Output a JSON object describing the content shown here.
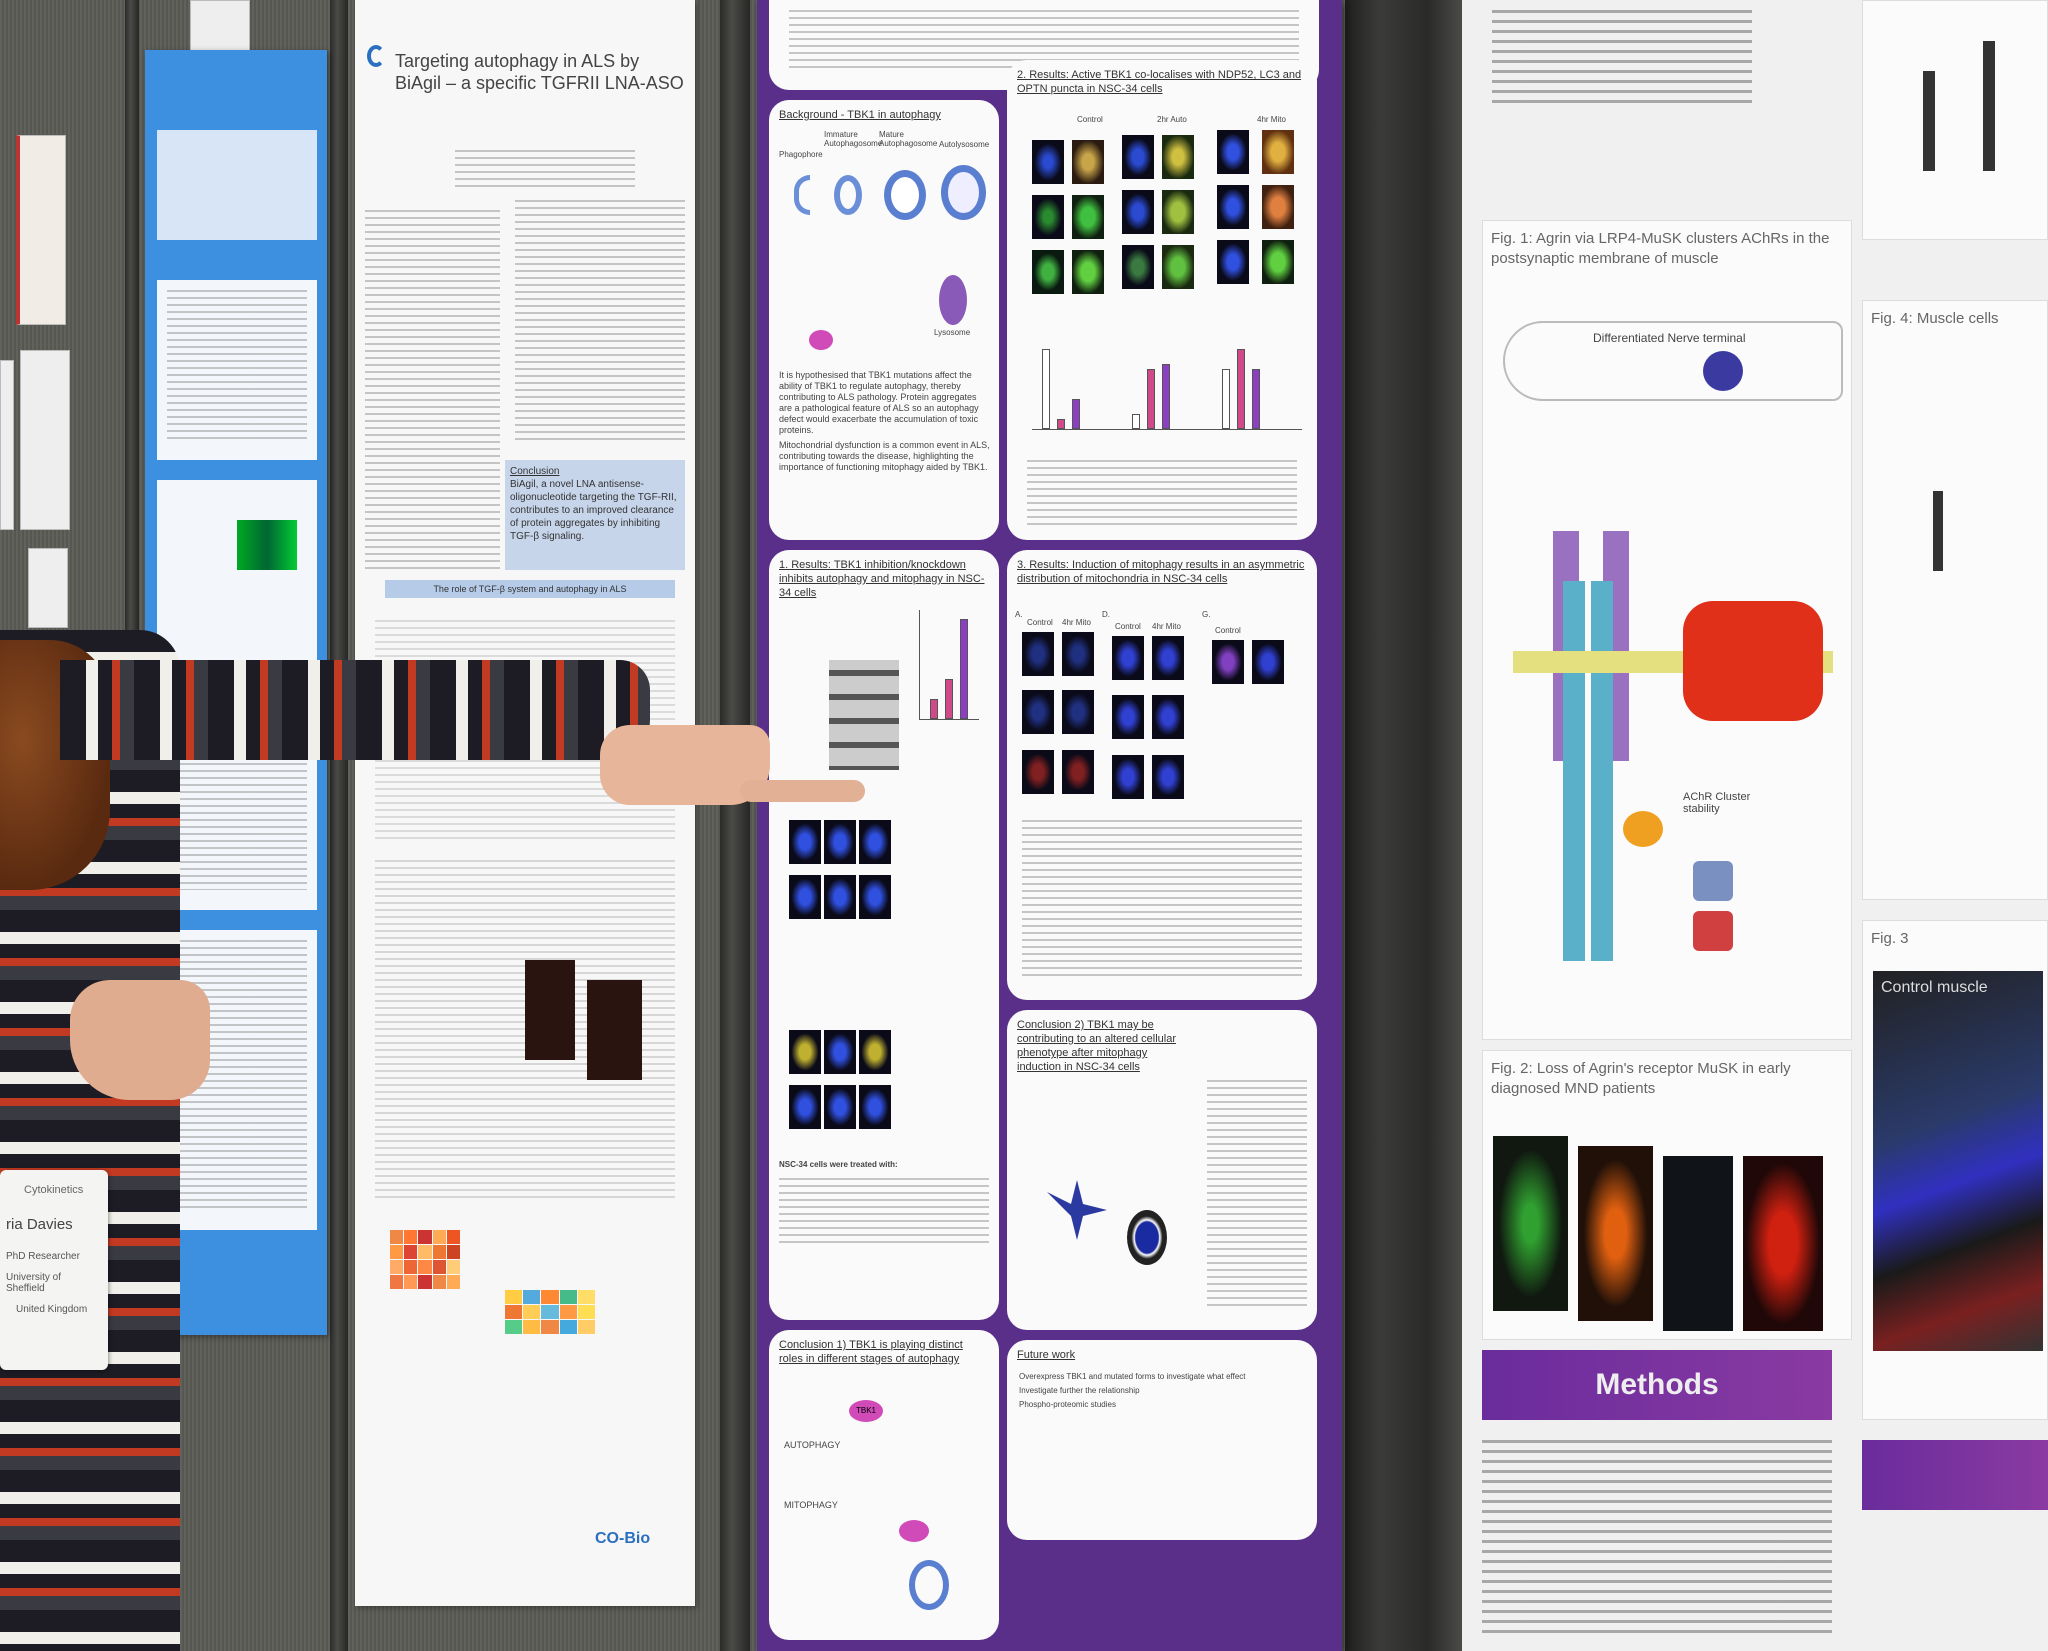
{
  "scene": "poster session",
  "badge": {
    "org": "Cytokinetics",
    "name": "ria Davies",
    "role": "PhD Researcher",
    "affiliation": "University of Sheffield",
    "country": "United Kingdom"
  },
  "poster_tgfr": {
    "title": "Targeting autophagy in ALS by BiAgil – a specific TGFRII LNA-ASO",
    "conclusion_heading": "Conclusion",
    "conclusion_text": "BiAgil, a novel LNA antisense-oligonucleotide targeting the TGF-RII, contributes to an improved clearance of protein aggregates by inhibiting TGF-β signaling.",
    "section_role": "The role of TGF-β system and autophagy in ALS",
    "logo": "CO-Bio"
  },
  "poster_tbk1": {
    "background_heading": "Background - TBK1 in autophagy",
    "stages": [
      "Phagophore",
      "Immature Autophagosome",
      "Mature Autophagosome",
      "Autolysosome"
    ],
    "lysosome": "Lysosome",
    "bullets": [
      "It is hypothesised that TBK1 mutations affect the ability of TBK1 to regulate autophagy, thereby contributing to ALS pathology. Protein aggregates are a pathological feature of ALS so an autophagy defect would exacerbate the accumulation of toxic proteins.",
      "Mitochondrial dysfunction is a common event in ALS, contributing towards the disease, highlighting the importance of functioning mitophagy aided by TBK1."
    ],
    "results1_heading": "1. Results: TBK1 inhibition/knockdown inhibits autophagy and mitophagy in NSC-34 cells",
    "results2_heading": "2. Results: Active TBK1 co-localises with NDP52, LC3 and OPTN puncta in NSC-34 cells",
    "results2_cols": [
      "Control",
      "2hr Auto",
      "4hr Mito"
    ],
    "results3_heading": "3. Results: Induction of mitophagy results in an asymmetric distribution of mitochondria in NSC-34 cells",
    "results3_cols": [
      "A.",
      "Control",
      "4hr Mito",
      "D.",
      "Control",
      "4hr Mito",
      "G.",
      "Control"
    ],
    "treated_heading": "NSC-34 cells were treated with:",
    "conclusion1_heading": "Conclusion 1) TBK1 is playing distinct roles in different stages of autophagy",
    "conclusion1_labels": [
      "AUTOPHAGY",
      "MITOPHAGY",
      "TBK1"
    ],
    "conclusion2_heading": "Conclusion 2) TBK1 may be contributing to an altered cellular phenotype after mitophagy induction in NSC-34 cells",
    "future_heading": "Future work",
    "future_items": [
      "Overexpress TBK1 and mutated forms to investigate what effect",
      "Investigate further the relationship",
      "Phospho-proteomic studies"
    ]
  },
  "poster_agrin": {
    "fig1": "Fig. 1: Agrin via LRP4-MuSK clusters AChRs in the postsynaptic membrane of muscle",
    "nerve_label": "Differentiated Nerve terminal",
    "achr_label": "AChR Cluster stability",
    "fig2": "Fig. 2: Loss of Agrin's receptor MuSK in early diagnosed MND patients",
    "fig3": "Fig. 3",
    "fig3_image_label": "Control muscle",
    "fig4": "Fig. 4: Muscle cells",
    "methods": "Methods"
  },
  "colors": {
    "purple": "#5a2f8a",
    "blue_poster": "#3d8fe0",
    "carpet": "#5d5d58"
  }
}
